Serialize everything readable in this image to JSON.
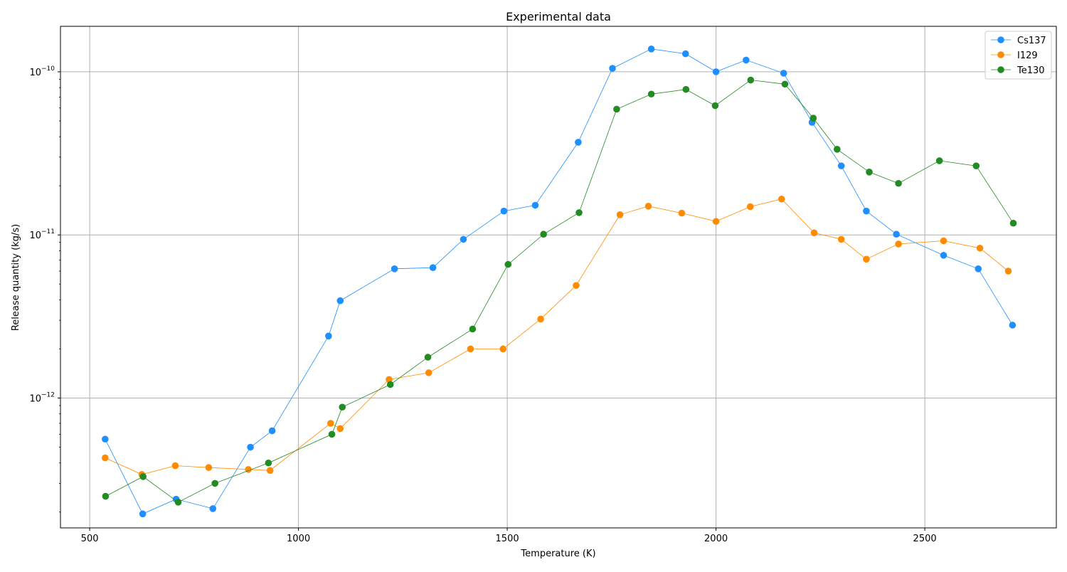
{
  "chart_data": {
    "type": "line",
    "title": "Experimental data",
    "xlabel": "Temperature (K)",
    "ylabel": "Release quantity (kg/s)",
    "xlim": [
      430,
      2815
    ],
    "ylim": [
      1.6e-13,
      1.9e-10
    ],
    "yscale": "log",
    "grid": true,
    "legend_position": "top-right",
    "x_ticks": [
      {
        "value": 500,
        "label": "500"
      },
      {
        "value": 1000,
        "label": "1000"
      },
      {
        "value": 1500,
        "label": "1500"
      },
      {
        "value": 2000,
        "label": "2000"
      },
      {
        "value": 2500,
        "label": "2500"
      }
    ],
    "y_ticks": [
      {
        "value": 1e-12,
        "base": "10",
        "exp": "−12"
      },
      {
        "value": 1e-11,
        "base": "10",
        "exp": "−11"
      },
      {
        "value": 1e-10,
        "base": "10",
        "exp": "−10"
      }
    ],
    "series": [
      {
        "name": "Cs137",
        "color": "#1f8fff",
        "points": [
          [
            537,
            5.6e-13
          ],
          [
            627,
            1.95e-13
          ],
          [
            707,
            2.4e-13
          ],
          [
            795,
            2.1e-13
          ],
          [
            885,
            5e-13
          ],
          [
            937,
            6.3e-13
          ],
          [
            1072,
            2.4e-12
          ],
          [
            1100,
            3.95e-12
          ],
          [
            1230,
            6.2e-12
          ],
          [
            1322,
            6.3e-12
          ],
          [
            1395,
            9.4e-12
          ],
          [
            1492,
            1.4e-11
          ],
          [
            1567,
            1.52e-11
          ],
          [
            1670,
            3.7e-11
          ],
          [
            1752,
            1.05e-10
          ],
          [
            1845,
            1.38e-10
          ],
          [
            1927,
            1.29e-10
          ],
          [
            2000,
            1e-10
          ],
          [
            2072,
            1.18e-10
          ],
          [
            2162,
            9.8e-11
          ],
          [
            2230,
            4.9e-11
          ],
          [
            2300,
            2.65e-11
          ],
          [
            2360,
            1.4e-11
          ],
          [
            2432,
            1.01e-11
          ],
          [
            2545,
            7.5e-12
          ],
          [
            2628,
            6.2e-12
          ],
          [
            2710,
            2.8e-12
          ]
        ]
      },
      {
        "name": "I129",
        "color": "#ff8c00",
        "points": [
          [
            537,
            4.3e-13
          ],
          [
            625,
            3.4e-13
          ],
          [
            705,
            3.85e-13
          ],
          [
            785,
            3.75e-13
          ],
          [
            880,
            3.65e-13
          ],
          [
            932,
            3.6e-13
          ],
          [
            1077,
            7e-13
          ],
          [
            1100,
            6.5e-13
          ],
          [
            1217,
            1.3e-12
          ],
          [
            1312,
            1.43e-12
          ],
          [
            1412,
            2e-12
          ],
          [
            1490,
            2e-12
          ],
          [
            1580,
            3.05e-12
          ],
          [
            1665,
            4.9e-12
          ],
          [
            1770,
            1.33e-11
          ],
          [
            1838,
            1.5e-11
          ],
          [
            1918,
            1.36e-11
          ],
          [
            2000,
            1.21e-11
          ],
          [
            2082,
            1.49e-11
          ],
          [
            2157,
            1.66e-11
          ],
          [
            2235,
            1.03e-11
          ],
          [
            2300,
            9.4e-12
          ],
          [
            2360,
            7.1e-12
          ],
          [
            2437,
            8.8e-12
          ],
          [
            2545,
            9.2e-12
          ],
          [
            2632,
            8.3e-12
          ],
          [
            2700,
            6e-12
          ]
        ]
      },
      {
        "name": "Te130",
        "color": "#228b22",
        "points": [
          [
            538,
            2.5e-13
          ],
          [
            628,
            3.3e-13
          ],
          [
            712,
            2.3e-13
          ],
          [
            800,
            3e-13
          ],
          [
            928,
            4e-13
          ],
          [
            1080,
            6e-13
          ],
          [
            1105,
            8.8e-13
          ],
          [
            1220,
            1.21e-12
          ],
          [
            1310,
            1.78e-12
          ],
          [
            1417,
            2.65e-12
          ],
          [
            1502,
            6.6e-12
          ],
          [
            1587,
            1.01e-11
          ],
          [
            1672,
            1.37e-11
          ],
          [
            1762,
            5.9e-11
          ],
          [
            1845,
            7.3e-11
          ],
          [
            1928,
            7.8e-11
          ],
          [
            1998,
            6.2e-11
          ],
          [
            2083,
            8.9e-11
          ],
          [
            2165,
            8.4e-11
          ],
          [
            2233,
            5.2e-11
          ],
          [
            2290,
            3.35e-11
          ],
          [
            2367,
            2.43e-11
          ],
          [
            2437,
            2.07e-11
          ],
          [
            2535,
            2.85e-11
          ],
          [
            2623,
            2.65e-11
          ],
          [
            2712,
            1.18e-11
          ]
        ]
      }
    ]
  }
}
